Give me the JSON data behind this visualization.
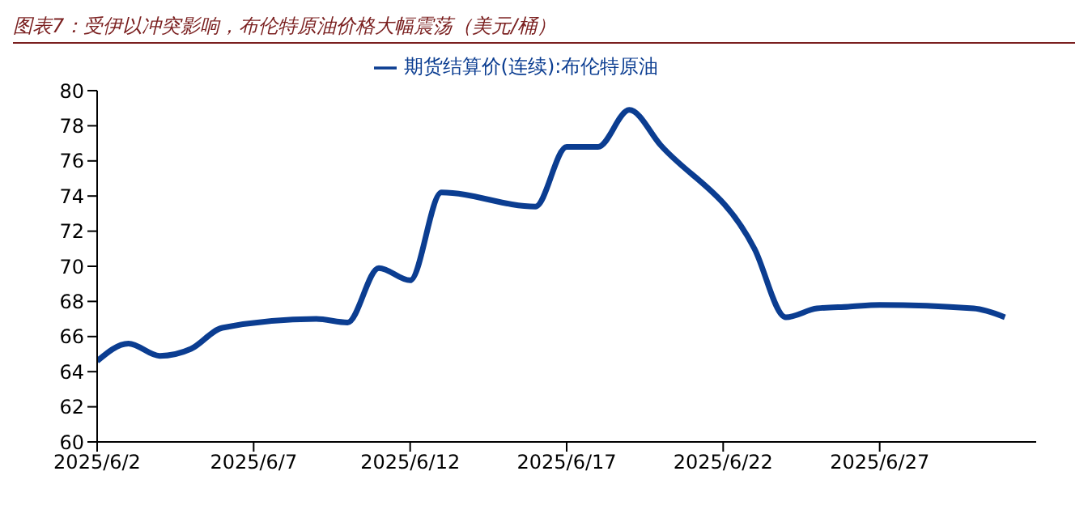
{
  "chart_data": {
    "type": "line",
    "title": "图表7：受伊以冲突影响，布伦特原油价格大幅震荡（美元/桶）",
    "x": [
      "2025-06-02",
      "2025-06-03",
      "2025-06-04",
      "2025-06-05",
      "2025-06-06",
      "2025-06-09",
      "2025-06-10",
      "2025-06-11",
      "2025-06-12",
      "2025-06-13",
      "2025-06-16",
      "2025-06-17",
      "2025-06-18",
      "2025-06-19",
      "2025-06-20",
      "2025-06-23",
      "2025-06-24",
      "2025-06-25",
      "2025-06-26",
      "2025-06-27",
      "2025-06-30",
      "2025-07-01"
    ],
    "series": [
      {
        "name": "期货结算价(连续):布伦特原油",
        "color": "#0b3d91",
        "values": [
          64.6,
          65.6,
          64.9,
          65.3,
          66.5,
          67.0,
          66.8,
          69.9,
          69.2,
          74.2,
          73.4,
          76.8,
          76.8,
          78.9,
          76.9,
          71.0,
          67.1,
          67.6,
          67.7,
          67.8,
          67.6,
          67.1
        ]
      }
    ],
    "xlim": [
      "2025-06-02",
      "2025-07-02"
    ],
    "xticks": [
      {
        "value": "2025-06-02",
        "label": "2025/6/2"
      },
      {
        "value": "2025-06-07",
        "label": "2025/6/7"
      },
      {
        "value": "2025-06-12",
        "label": "2025/6/12"
      },
      {
        "value": "2025-06-17",
        "label": "2025/6/17"
      },
      {
        "value": "2025-06-22",
        "label": "2025/6/22"
      },
      {
        "value": "2025-06-27",
        "label": "2025/6/27"
      }
    ],
    "ylim": [
      60,
      80
    ],
    "yticks": [
      60,
      62,
      64,
      66,
      68,
      70,
      72,
      74,
      76,
      78,
      80
    ],
    "grid": false,
    "legend": "top",
    "marker": "none",
    "line_style": "solid"
  }
}
